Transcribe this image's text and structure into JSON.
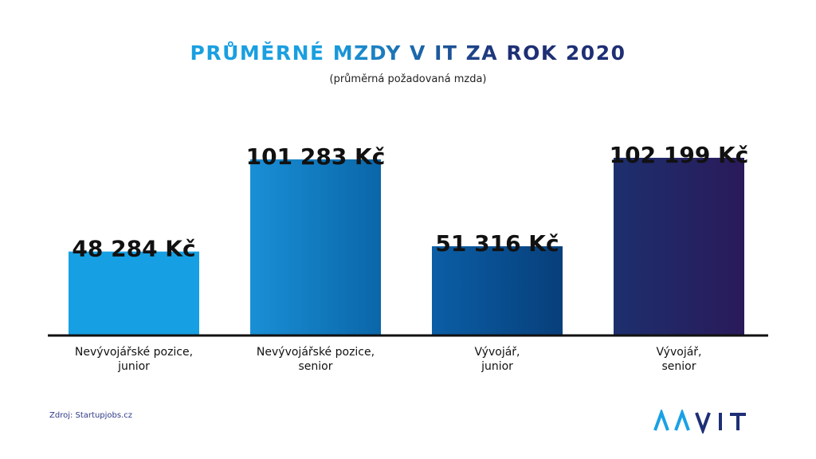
{
  "chart_data": {
    "type": "bar",
    "title": "PRŮMĚRNÉ MZDY V IT ZA ROK 2020",
    "subtitle": "(průměrná požadovaná mzda)",
    "categories": [
      [
        "Nevývojářské pozice,",
        "junior"
      ],
      [
        "Nevývojářské pozice,",
        "senior"
      ],
      [
        "Vývojář,",
        "junior"
      ],
      [
        "Vývojář,",
        "senior"
      ]
    ],
    "values": [
      48284,
      101283,
      51316,
      102199
    ],
    "value_labels": [
      "48 284 Kč",
      "101 283 Kč",
      "51 316 Kč",
      "102 199 Kč"
    ],
    "ylim": [
      0,
      110000
    ],
    "grid": false,
    "colors": [
      [
        "#16a0e3",
        "#16a0e3"
      ],
      [
        "#1a8fd6",
        "#0a66a8"
      ],
      [
        "#0b5ea6",
        "#073f7a"
      ],
      [
        "#1d2f6e",
        "#2a1a5a"
      ]
    ]
  },
  "source": "Zdroj: Startupjobs.cz",
  "logo": {
    "text": "AAVIT",
    "colors": [
      "#1aa0e6",
      "#1e2f75"
    ]
  }
}
